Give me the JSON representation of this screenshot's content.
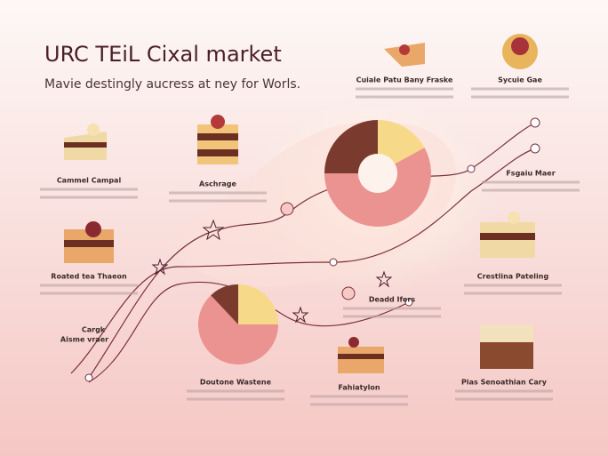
{
  "header": {
    "title": "URC TEiL Cixal market",
    "subtitle": "Mavie destingly aucress at ney for Worls."
  },
  "labels": [
    "Cuiale Patu Bany Fraske",
    "Sycuie Gae",
    "Cammel Campal",
    "Aschrage",
    "Fsgaiu Maer",
    "Roated tea Thaeon",
    "Crestlina Pateling",
    "Cargk",
    "Aisme vraer",
    "Deadd Ifers",
    "Doutone Wastene",
    "Fahiatylon",
    "Pias Senoathian Cary"
  ],
  "donuts": [
    {
      "values": [
        17,
        58,
        25
      ],
      "colors": [
        "#f7d98a",
        "#eb9391",
        "#7a3b2e"
      ]
    },
    {
      "values": [
        25,
        63,
        12
      ],
      "colors": [
        "#f7d98a",
        "#eb9391",
        "#7a3b2e"
      ]
    }
  ]
}
